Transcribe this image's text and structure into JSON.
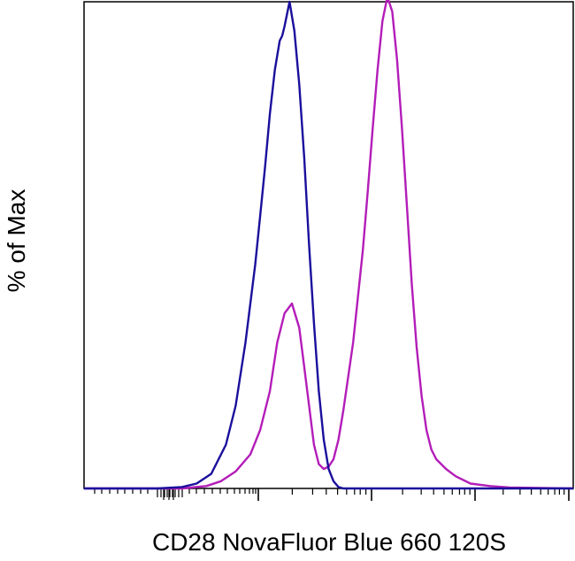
{
  "chart_data": {
    "type": "line",
    "title": "",
    "xlabel": "CD28 NovaFluor Blue 660 120S",
    "ylabel": "% of Max",
    "x_scale": "log (biexponential), tick labels not printed",
    "xlim": [
      0,
      1
    ],
    "ylim": [
      0,
      100
    ],
    "grid": false,
    "legend": "none",
    "series": [
      {
        "color": "#1a0f9c",
        "x": [
          0.0,
          0.15,
          0.2,
          0.23,
          0.26,
          0.29,
          0.31,
          0.33,
          0.35,
          0.36,
          0.37,
          0.38,
          0.39,
          0.4,
          0.405,
          0.41,
          0.42,
          0.43,
          0.44,
          0.45,
          0.46,
          0.47,
          0.48,
          0.49,
          0.5,
          0.51,
          0.52,
          0.53,
          1.0
        ],
        "y": [
          0,
          0,
          0.3,
          1,
          3,
          9,
          17,
          30,
          46,
          56,
          66,
          77,
          86,
          92,
          93,
          95,
          100,
          94,
          83,
          68,
          50,
          34,
          20,
          10,
          4,
          1.5,
          0.3,
          0,
          0
        ]
      },
      {
        "color": "#b31db8",
        "x": [
          0.0,
          0.2,
          0.25,
          0.28,
          0.31,
          0.34,
          0.36,
          0.38,
          0.395,
          0.41,
          0.425,
          0.44,
          0.45,
          0.46,
          0.47,
          0.48,
          0.49,
          0.5,
          0.51,
          0.52,
          0.53,
          0.55,
          0.57,
          0.58,
          0.59,
          0.6,
          0.61,
          0.62,
          0.63,
          0.64,
          0.65,
          0.66,
          0.67,
          0.68,
          0.69,
          0.7,
          0.71,
          0.72,
          0.74,
          0.76,
          0.79,
          0.83,
          0.87,
          1.0
        ],
        "y": [
          0,
          0,
          0.5,
          1.5,
          3.5,
          7,
          12,
          20,
          30,
          36,
          38,
          33,
          25,
          17,
          9,
          5,
          4,
          4.5,
          6,
          10,
          16,
          30,
          49,
          61,
          74,
          86,
          96,
          101,
          98,
          88,
          74,
          58,
          42,
          29,
          19,
          12,
          8,
          6,
          4,
          2.5,
          1,
          0.5,
          0.2,
          0
        ]
      }
    ]
  }
}
